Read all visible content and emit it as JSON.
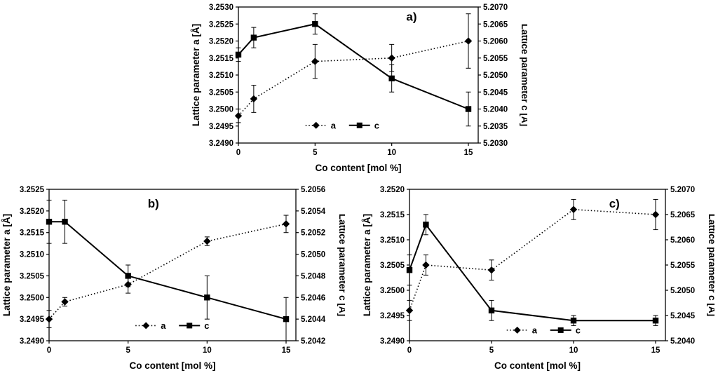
{
  "figure": {
    "background": "#ffffff",
    "ink": "#000000"
  },
  "chart_data": [
    {
      "id": "chart-a",
      "type": "line",
      "panel_label": "a)",
      "x": [
        0,
        1,
        5,
        10,
        15
      ],
      "x_axis": {
        "label": "Co content  [mol %]",
        "min": 0,
        "max": 15,
        "ticks": [
          0,
          5,
          10,
          15
        ]
      },
      "left_axis": {
        "label": "Lattice parameter a  [Å]",
        "min": 3.249,
        "max": 3.253,
        "step": 0.0005
      },
      "right_axis": {
        "label": "Lattice parameter c  [Å]",
        "min": 5.203,
        "max": 5.207,
        "step": 0.0005
      },
      "series": [
        {
          "name": "a",
          "axis": "left",
          "marker": "diamond",
          "line": "dotted",
          "values": [
            3.2498,
            3.2503,
            3.2514,
            3.2515,
            3.252
          ],
          "errors": [
            0.0002,
            0.0004,
            0.0005,
            0.0004,
            0.0008
          ]
        },
        {
          "name": "c",
          "axis": "right",
          "marker": "square",
          "line": "solid",
          "values": [
            5.2056,
            5.2061,
            5.2065,
            5.2049,
            5.204
          ],
          "errors": [
            0.0002,
            0.0003,
            0.0003,
            0.0004,
            0.0005
          ]
        }
      ],
      "legend": {
        "items": [
          "a",
          "c"
        ],
        "position": "bottom-center-inside"
      },
      "panel_label_pos": {
        "fx": 0.7,
        "fy": 0.1
      },
      "legend_pos": {
        "fx": 0.28,
        "fy": 0.87
      },
      "grid": false
    },
    {
      "id": "chart-b",
      "type": "line",
      "panel_label": "b)",
      "x": [
        0,
        1,
        5,
        10,
        15
      ],
      "x_axis": {
        "label": "Co content  [mol %]",
        "min": 0,
        "max": 15,
        "ticks": [
          0,
          5,
          10,
          15
        ]
      },
      "left_axis": {
        "label": "Lattice parameter a  [Å]",
        "min": 3.249,
        "max": 3.2525,
        "step": 0.0005
      },
      "right_axis": {
        "label": "Lattice parameter c  [Å]",
        "min": 5.2042,
        "max": 5.2056,
        "step": 0.0002
      },
      "series": [
        {
          "name": "a",
          "axis": "left",
          "marker": "diamond",
          "line": "dotted",
          "values": [
            3.2495,
            3.2499,
            3.2503,
            3.2513,
            3.2517
          ],
          "errors": [
            0.0002,
            0.0001,
            0.0002,
            0.0001,
            0.0002
          ]
        },
        {
          "name": "c",
          "axis": "right",
          "marker": "square",
          "line": "solid",
          "values": [
            5.2053,
            5.2053,
            5.2048,
            5.2046,
            5.2044
          ],
          "errors": [
            0.0002,
            0.0002,
            0.0001,
            0.0002,
            0.0002
          ]
        }
      ],
      "legend": {
        "items": [
          "a",
          "c"
        ],
        "position": "bottom-center-inside"
      },
      "panel_label_pos": {
        "fx": 0.4,
        "fy": 0.12
      },
      "legend_pos": {
        "fx": 0.35,
        "fy": 0.9
      },
      "grid": false
    },
    {
      "id": "chart-c",
      "type": "line",
      "panel_label": "c)",
      "x": [
        0,
        1,
        5,
        10,
        15
      ],
      "x_axis": {
        "label": "Co content  [mol %]",
        "min": 0,
        "max": 15,
        "ticks": [
          0,
          5,
          10,
          15
        ]
      },
      "left_axis": {
        "label": "Lattice parameter a  [Å]",
        "min": 3.249,
        "max": 3.252,
        "step": 0.0005
      },
      "right_axis": {
        "label": "Lattice parameter c  [Å]",
        "min": 5.204,
        "max": 5.207,
        "step": 0.0005
      },
      "series": [
        {
          "name": "a",
          "axis": "left",
          "marker": "diamond",
          "line": "dotted",
          "values": [
            3.2496,
            3.2505,
            3.2504,
            3.2516,
            3.2515
          ],
          "errors": [
            0.0002,
            0.0002,
            0.0002,
            0.0002,
            0.0003
          ]
        },
        {
          "name": "c",
          "axis": "right",
          "marker": "square",
          "line": "solid",
          "values": [
            5.2054,
            5.2063,
            5.2046,
            5.2044,
            5.2044
          ],
          "errors": [
            0.0003,
            0.0002,
            0.0002,
            0.0001,
            0.0001
          ]
        }
      ],
      "legend": {
        "items": [
          "a",
          "c"
        ],
        "position": "bottom-center-inside"
      },
      "panel_label_pos": {
        "fx": 0.78,
        "fy": 0.12
      },
      "legend_pos": {
        "fx": 0.38,
        "fy": 0.93
      },
      "grid": false
    }
  ]
}
